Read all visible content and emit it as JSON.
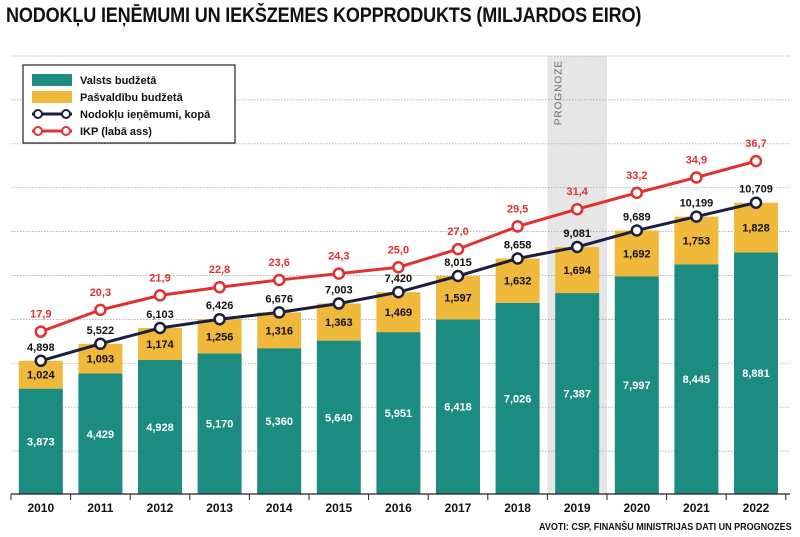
{
  "title": "NODOKĻU IEŅĒMUMI UN IEKŠZEMES KOPPRODUKTS (MILJARDOS EIRO)",
  "source": "AVOTI: CSP, FINANŠU MINISTRIJAS DATI UN PROGNOZES",
  "colors": {
    "state_budget": "#1c8b80",
    "municipal_budget": "#f0b93c",
    "total_line": "#1a1f3f",
    "gdp_line": "#e03030",
    "forecast_bg": "#e6e6e6"
  },
  "chart_data": {
    "type": "bar",
    "stacked": true,
    "categories": [
      "2010",
      "2011",
      "2012",
      "2013",
      "2014",
      "2015",
      "2016",
      "2017",
      "2018",
      "2019",
      "2020",
      "2021",
      "2022"
    ],
    "forecast_label": "PROGNOZE",
    "forecast_from": "2019",
    "series": [
      {
        "name": "Valsts budžetā",
        "type": "bar",
        "values": [
          "3,873",
          "4,429",
          "4,928",
          "5,170",
          "5,360",
          "5,640",
          "5,951",
          "6,418",
          "7,026",
          "7,387",
          "7,997",
          "8,445",
          "8,881"
        ]
      },
      {
        "name": "Pašvaldību budžetā",
        "type": "bar",
        "values": [
          "1,024",
          "1,093",
          "1,174",
          "1,256",
          "1,316",
          "1,363",
          "1,469",
          "1,597",
          "1,632",
          "1,694",
          "1,692",
          "1,753",
          "1,828"
        ]
      },
      {
        "name": "Nodokļu ieņēmumi, kopā",
        "type": "line",
        "values": [
          "4,898",
          "5,522",
          "6,103",
          "6,426",
          "6,676",
          "7,003",
          "7,420",
          "8,015",
          "8,658",
          "9,081",
          "9,689",
          "10,199",
          "10,709"
        ]
      },
      {
        "name": "IKP (labā ass)",
        "type": "line",
        "values": [
          "17,9",
          "20,3",
          "21,9",
          "22,8",
          "23,6",
          "24,3",
          "25,0",
          "27,0",
          "29,5",
          "31,4",
          "33,2",
          "34,9",
          "36,7"
        ]
      }
    ],
    "left_axis_range": [
      0,
      15
    ],
    "right_axis_range": [
      0,
      45
    ],
    "grid": true,
    "legend_position": "top-left"
  }
}
